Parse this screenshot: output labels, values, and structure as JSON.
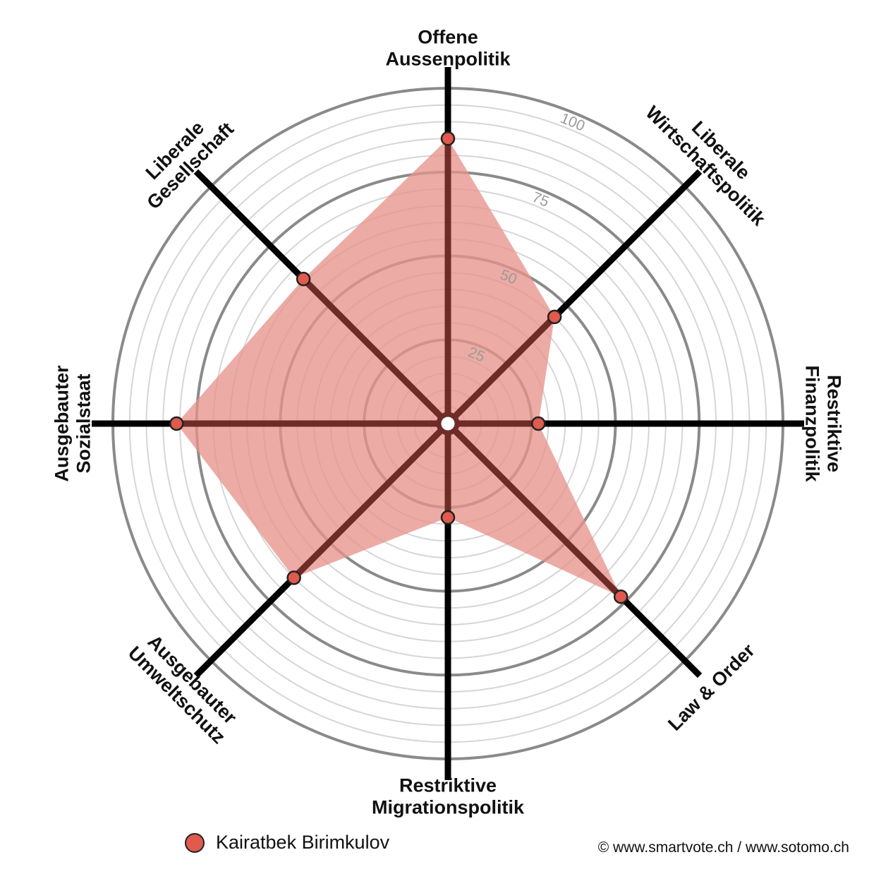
{
  "chart_data": {
    "type": "radar",
    "range": [
      0,
      100
    ],
    "ticks": [
      25,
      50,
      75,
      100
    ],
    "grid": true,
    "axes": [
      {
        "label_lines": [
          "Offene",
          "Aussenpolitik"
        ],
        "value": 85
      },
      {
        "label_lines": [
          "Liberale",
          "Wirtschaftspolitik"
        ],
        "value": 45
      },
      {
        "label_lines": [
          "Restriktive",
          "Finanzpolitik"
        ],
        "value": 27
      },
      {
        "label_lines": [
          "Law & Order"
        ],
        "value": 73
      },
      {
        "label_lines": [
          "Restriktive",
          "Migrationspolitik"
        ],
        "value": 28
      },
      {
        "label_lines": [
          "Ausgebauter",
          "Umweltschutz"
        ],
        "value": 65
      },
      {
        "label_lines": [
          "Ausgebauter",
          "Sozialstaat"
        ],
        "value": 81
      },
      {
        "label_lines": [
          "Liberale",
          "Gesellschaft"
        ],
        "value": 61
      }
    ],
    "series": [
      {
        "name": "Kairatbek Birimkulov",
        "color": "#e05a4e",
        "fill_color": "#e8948c"
      }
    ],
    "legend_position": "bottom-left"
  },
  "legend": {
    "name": "Kairatbek Birimkulov"
  },
  "copyright": "© www.smartvote.ch / www.sotomo.ch"
}
